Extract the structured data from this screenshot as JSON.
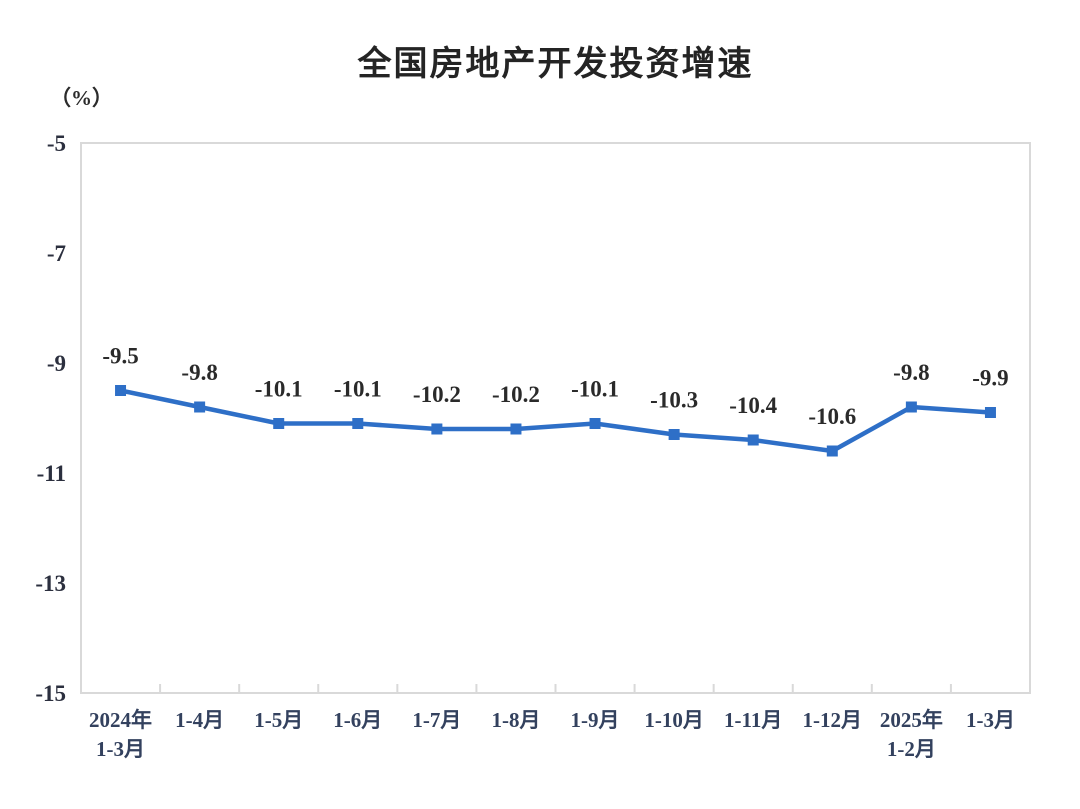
{
  "header": {
    "title": "全国房地产开发投资增速",
    "unit_label": "（%）"
  },
  "chart_data": {
    "type": "line",
    "title": "全国房地产开发投资增速",
    "ylabel": "（%）",
    "xlabel": "",
    "categories": [
      "2024年\n1-3月",
      "1-4月",
      "1-5月",
      "1-6月",
      "1-7月",
      "1-8月",
      "1-9月",
      "1-10月",
      "1-11月",
      "1-12月",
      "2025年\n1-2月",
      "1-3月"
    ],
    "values": [
      -9.5,
      -9.8,
      -10.1,
      -10.1,
      -10.2,
      -10.2,
      -10.1,
      -10.3,
      -10.4,
      -10.6,
      -9.8,
      -9.9
    ],
    "data_labels": [
      "-9.5",
      "-9.8",
      "-10.1",
      "-10.1",
      "-10.2",
      "-10.2",
      "-10.1",
      "-10.3",
      "-10.4",
      "-10.6",
      "-9.8",
      "-9.9"
    ],
    "yticks": [
      -5,
      -7,
      -9,
      -11,
      -13,
      -15
    ],
    "ylim": [
      -15,
      -5
    ],
    "grid": false,
    "legend": "none",
    "line_color": "#2e6fc7",
    "marker": "square",
    "frame_color": "#d9d9d9"
  }
}
